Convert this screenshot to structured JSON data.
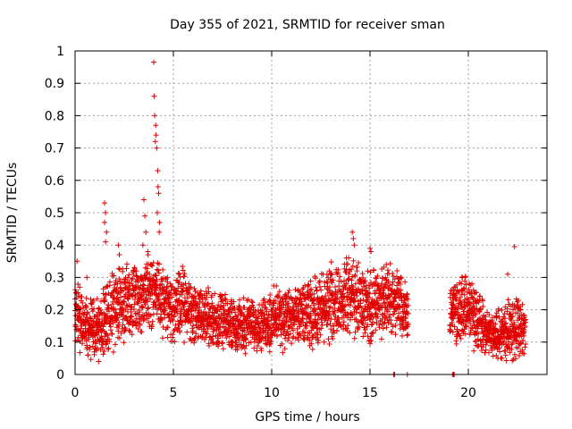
{
  "chart_data": {
    "type": "scatter",
    "title": "Day 355 of 2021, SRMTID for receiver sman",
    "xlabel": "GPS time / hours",
    "ylabel": "SRMTID / TECUs",
    "xlim": [
      0,
      24
    ],
    "ylim": [
      0,
      1
    ],
    "grid": true,
    "marker": "+",
    "color": "#e00000",
    "xticks": [
      0,
      5,
      10,
      15,
      20
    ],
    "xtick_labels": [
      "0",
      "5",
      "10",
      "15",
      "20"
    ],
    "yticks": [
      0,
      0.1,
      0.2,
      0.3,
      0.4,
      0.5,
      0.6,
      0.7,
      0.8,
      0.9,
      1
    ],
    "ytick_labels": [
      "0",
      "0.1",
      "0.2",
      "0.3",
      "0.4",
      "0.5",
      "0.6",
      "0.7",
      "0.8",
      "0.9",
      "1"
    ],
    "series": [
      {
        "name": "SRMTID",
        "profile_hours": [
          0,
          0.5,
          1.0,
          1.5,
          2.0,
          2.5,
          3.0,
          3.5,
          4.0,
          4.5,
          5.0,
          5.5,
          6.0,
          6.5,
          7.0,
          7.5,
          8.0,
          8.5,
          9.0,
          9.5,
          10.0,
          10.5,
          11.0,
          11.5,
          12.0,
          12.5,
          13.0,
          13.5,
          14.0,
          14.5,
          15.0,
          15.5,
          16.0,
          16.5,
          16.9,
          19.1,
          19.5,
          20.0,
          20.5,
          21.0,
          21.5,
          22.0,
          22.5,
          22.9
        ],
        "profile_median": [
          0.2,
          0.15,
          0.14,
          0.18,
          0.2,
          0.22,
          0.24,
          0.25,
          0.26,
          0.22,
          0.2,
          0.22,
          0.19,
          0.18,
          0.17,
          0.16,
          0.16,
          0.15,
          0.16,
          0.15,
          0.17,
          0.18,
          0.17,
          0.18,
          0.19,
          0.2,
          0.22,
          0.23,
          0.24,
          0.22,
          0.21,
          0.22,
          0.24,
          0.21,
          0.2,
          0.2,
          0.19,
          0.2,
          0.17,
          0.12,
          0.13,
          0.14,
          0.15,
          0.13
        ],
        "profile_spread": [
          0.09,
          0.08,
          0.08,
          0.1,
          0.1,
          0.1,
          0.1,
          0.1,
          0.1,
          0.09,
          0.1,
          0.1,
          0.09,
          0.08,
          0.08,
          0.07,
          0.07,
          0.07,
          0.07,
          0.07,
          0.08,
          0.09,
          0.08,
          0.08,
          0.09,
          0.1,
          0.1,
          0.1,
          0.11,
          0.1,
          0.1,
          0.1,
          0.1,
          0.09,
          0.08,
          0.08,
          0.09,
          0.1,
          0.09,
          0.06,
          0.07,
          0.08,
          0.09,
          0.06
        ],
        "sample_step_hours": 0.02,
        "gap_hours": [
          [
            16.95,
            19.05
          ]
        ],
        "extra_points": [
          {
            "x": 4.0,
            "y": 0.965
          },
          {
            "x": 4.02,
            "y": 0.86
          },
          {
            "x": 4.05,
            "y": 0.8
          },
          {
            "x": 4.1,
            "y": 0.77
          },
          {
            "x": 4.12,
            "y": 0.74
          },
          {
            "x": 4.08,
            "y": 0.72
          },
          {
            "x": 4.15,
            "y": 0.7
          },
          {
            "x": 4.2,
            "y": 0.63
          },
          {
            "x": 4.22,
            "y": 0.58
          },
          {
            "x": 4.25,
            "y": 0.56
          },
          {
            "x": 4.18,
            "y": 0.5
          },
          {
            "x": 4.3,
            "y": 0.47
          },
          {
            "x": 4.28,
            "y": 0.44
          },
          {
            "x": 3.5,
            "y": 0.54
          },
          {
            "x": 3.55,
            "y": 0.49
          },
          {
            "x": 3.6,
            "y": 0.44
          },
          {
            "x": 3.45,
            "y": 0.4
          },
          {
            "x": 3.7,
            "y": 0.38
          },
          {
            "x": 1.5,
            "y": 0.53
          },
          {
            "x": 1.55,
            "y": 0.5
          },
          {
            "x": 1.5,
            "y": 0.47
          },
          {
            "x": 1.6,
            "y": 0.44
          },
          {
            "x": 1.55,
            "y": 0.41
          },
          {
            "x": 2.2,
            "y": 0.4
          },
          {
            "x": 2.25,
            "y": 0.37
          },
          {
            "x": 0.1,
            "y": 0.35
          },
          {
            "x": 0.6,
            "y": 0.3
          },
          {
            "x": 14.1,
            "y": 0.44
          },
          {
            "x": 14.15,
            "y": 0.42
          },
          {
            "x": 14.2,
            "y": 0.4
          },
          {
            "x": 15.0,
            "y": 0.39
          },
          {
            "x": 15.05,
            "y": 0.38
          },
          {
            "x": 13.8,
            "y": 0.36
          },
          {
            "x": 22.35,
            "y": 0.395
          },
          {
            "x": 22.0,
            "y": 0.31
          },
          {
            "x": 21.5,
            "y": 0.05
          },
          {
            "x": 16.2,
            "y": 0.0
          },
          {
            "x": 16.25,
            "y": 0.0
          },
          {
            "x": 16.9,
            "y": 0.0
          },
          {
            "x": 19.2,
            "y": 0.0
          },
          {
            "x": 19.25,
            "y": 0.0
          },
          {
            "x": 19.28,
            "y": 0.0
          },
          {
            "x": 1.2,
            "y": 0.04
          },
          {
            "x": 0.65,
            "y": 0.06
          },
          {
            "x": 9.9,
            "y": 0.07
          }
        ]
      }
    ]
  }
}
